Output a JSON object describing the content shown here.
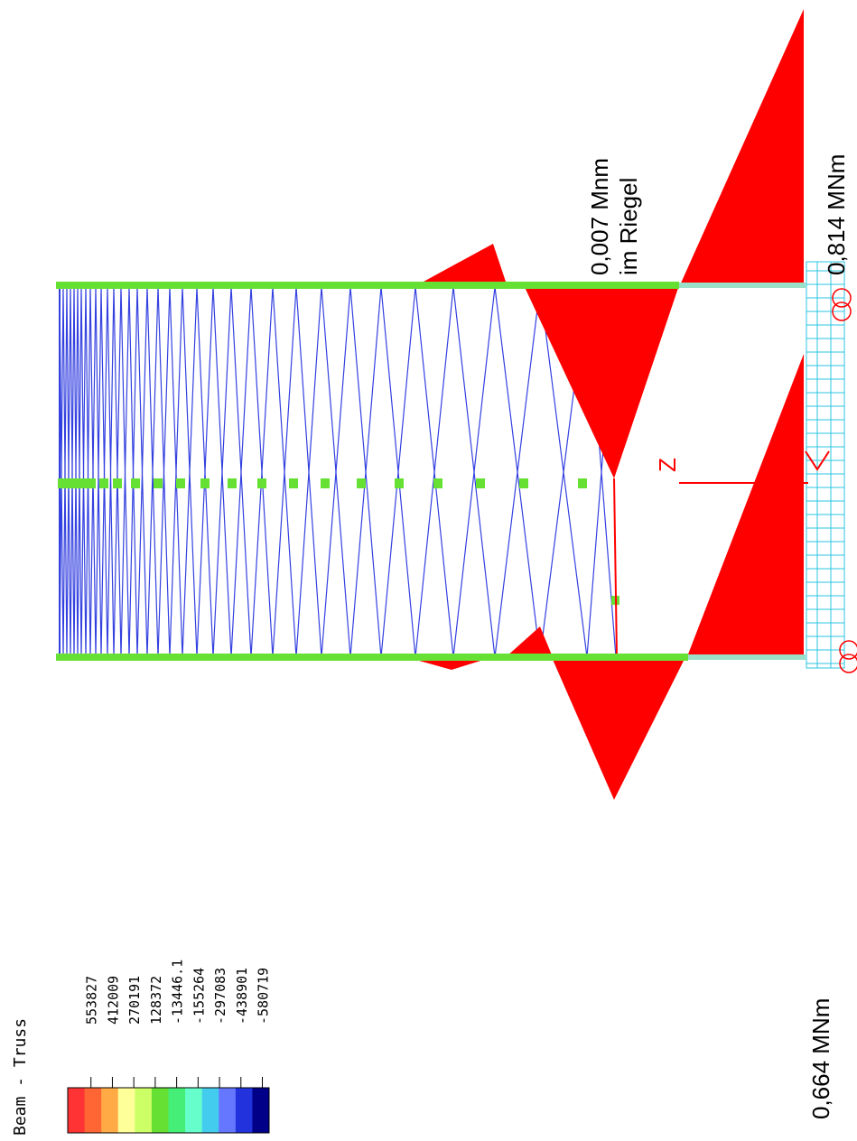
{
  "legend": {
    "title": "Beam - Truss",
    "values": [
      "553827",
      "412009",
      "270191",
      "128372",
      "-13446.1",
      "-155264",
      "-297083",
      "-438901",
      "-580719"
    ]
  },
  "annotations": {
    "top_moment": "0,007 Mnm",
    "top_moment_note": "im Riegel",
    "right_moment": "0,814 MNm",
    "bottom_moment": "0,664 MNm"
  },
  "axis": {
    "z": "Z"
  }
}
